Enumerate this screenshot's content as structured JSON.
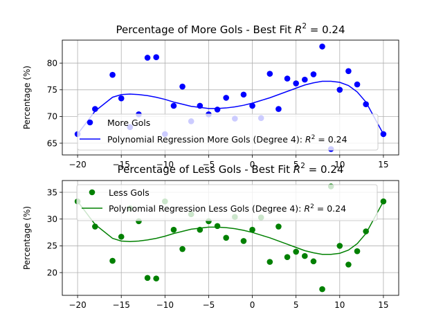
{
  "chart_data": [
    {
      "type": "scatter",
      "title": "Percentage of More Gols - Best Fit $R^2$ = 0.24",
      "title_text": "Percentage of More Gols - Best Fit ",
      "title_r2": "R",
      "title_sup": "2",
      "title_tail": " = 0.24",
      "xlabel": "",
      "ylabel": "Percentage (%)",
      "xlim": [
        -21.75,
        16.75
      ],
      "ylim": [
        62.8,
        84.3
      ],
      "xticks": [
        -20,
        -15,
        -10,
        -5,
        0,
        5,
        10,
        15
      ],
      "xtick_labels": [
        "−20",
        "−15",
        "−10",
        "−5",
        "0",
        "5",
        "10",
        "15"
      ],
      "yticks": [
        65,
        70,
        75,
        80
      ],
      "ytick_labels": [
        "65",
        "70",
        "75",
        "80"
      ],
      "grid": true,
      "legend": {
        "placement": "lower-left",
        "entries": [
          "More Gols",
          "Polynomial Regression More Gols (Degree 4): $R^2 = 0.24$"
        ],
        "fit_text": "Polynomial Regression More Gols (Degree 4): ",
        "fit_r2": "R",
        "fit_sup": "2",
        "fit_tail": " = 0.24"
      },
      "color": "#0000ff",
      "points": {
        "x": [
          -20,
          -18,
          -16,
          -15,
          -14,
          -13,
          -12,
          -11,
          -10,
          -9,
          -8,
          -7,
          -6,
          -5,
          -4,
          -3,
          -2,
          -1,
          0,
          1,
          2,
          3,
          4,
          5,
          6,
          7,
          8,
          9,
          10,
          11,
          12,
          13,
          15
        ],
        "y": [
          66.7,
          71.4,
          77.8,
          73.4,
          68.0,
          70.4,
          81.0,
          81.1,
          66.7,
          72.0,
          75.6,
          69.1,
          72.0,
          70.4,
          71.3,
          73.5,
          69.6,
          74.1,
          72.0,
          69.7,
          78.0,
          71.4,
          77.1,
          76.2,
          76.9,
          77.9,
          83.1,
          63.9,
          75.0,
          78.5,
          76.0,
          72.3,
          66.7
        ]
      },
      "fit": {
        "x": [
          -20,
          -18,
          -16,
          -15,
          -14,
          -13,
          -12,
          -11,
          -10,
          -9,
          -8,
          -7,
          -6,
          -5,
          -4,
          -3,
          -2,
          -1,
          0,
          1,
          2,
          3,
          4,
          5,
          6,
          7,
          8,
          9,
          10,
          11,
          12,
          13,
          15
        ],
        "y": [
          66.7,
          71.0,
          73.6,
          74.1,
          74.2,
          74.1,
          73.9,
          73.6,
          73.2,
          72.7,
          72.3,
          71.9,
          71.7,
          71.5,
          71.5,
          71.6,
          71.8,
          72.1,
          72.5,
          73.0,
          73.5,
          74.1,
          74.7,
          75.3,
          75.9,
          76.3,
          76.6,
          76.6,
          76.4,
          75.8,
          74.6,
          72.7,
          66.7
        ]
      }
    },
    {
      "type": "scatter",
      "title": "Percentage of Less Gols - Best Fit $R^2$ = 0.24",
      "title_text": "Percentage of Less Gols - Best Fit ",
      "title_r2": "R",
      "title_sup": "2",
      "title_tail": " = 0.24",
      "xlabel": "",
      "ylabel": "Percentage (%)",
      "xlim": [
        -21.75,
        16.75
      ],
      "ylim": [
        15.75,
        37.2
      ],
      "xticks": [
        -20,
        -15,
        -10,
        -5,
        0,
        5,
        10,
        15
      ],
      "xtick_labels": [
        "−20",
        "−15",
        "−10",
        "−5",
        "0",
        "5",
        "10",
        "15"
      ],
      "yticks": [
        20,
        25,
        30,
        35
      ],
      "ytick_labels": [
        "20",
        "25",
        "30",
        "35"
      ],
      "grid": true,
      "legend": {
        "placement": "upper-left",
        "entries": [
          "Less Gols",
          "Polynomial Regression Less Gols (Degree 4): $R^2 = 0.24$"
        ],
        "fit_text": "Polynomial Regression Less Gols (Degree 4): ",
        "fit_r2": "R",
        "fit_sup": "2",
        "fit_tail": " = 0.24"
      },
      "color": "#008000",
      "points": {
        "x": [
          -20,
          -18,
          -16,
          -15,
          -14,
          -13,
          -12,
          -11,
          -10,
          -9,
          -8,
          -7,
          -6,
          -5,
          -4,
          -3,
          -2,
          -1,
          0,
          1,
          2,
          3,
          4,
          5,
          6,
          7,
          8,
          9,
          10,
          11,
          12,
          13,
          15
        ],
        "y": [
          33.3,
          28.6,
          22.2,
          26.7,
          32.0,
          29.6,
          19.0,
          18.9,
          33.3,
          28.0,
          24.4,
          30.9,
          28.0,
          29.6,
          28.7,
          26.5,
          30.4,
          25.9,
          28.0,
          30.3,
          22.0,
          28.6,
          22.9,
          23.9,
          23.1,
          22.1,
          16.9,
          36.1,
          25.0,
          21.5,
          24.0,
          27.7,
          33.3
        ]
      },
      "fit": {
        "x": [
          -20,
          -18,
          -16,
          -15,
          -14,
          -13,
          -12,
          -11,
          -10,
          -9,
          -8,
          -7,
          -6,
          -5,
          -4,
          -3,
          -2,
          -1,
          0,
          1,
          2,
          3,
          4,
          5,
          6,
          7,
          8,
          9,
          10,
          11,
          12,
          13,
          15
        ],
        "y": [
          33.3,
          29.0,
          26.4,
          25.9,
          25.8,
          25.9,
          26.1,
          26.4,
          26.8,
          27.3,
          27.7,
          28.1,
          28.3,
          28.5,
          28.5,
          28.4,
          28.2,
          27.9,
          27.5,
          27.0,
          26.5,
          25.9,
          25.3,
          24.7,
          24.1,
          23.7,
          23.4,
          23.4,
          23.6,
          24.2,
          25.4,
          27.3,
          33.3
        ]
      }
    }
  ]
}
